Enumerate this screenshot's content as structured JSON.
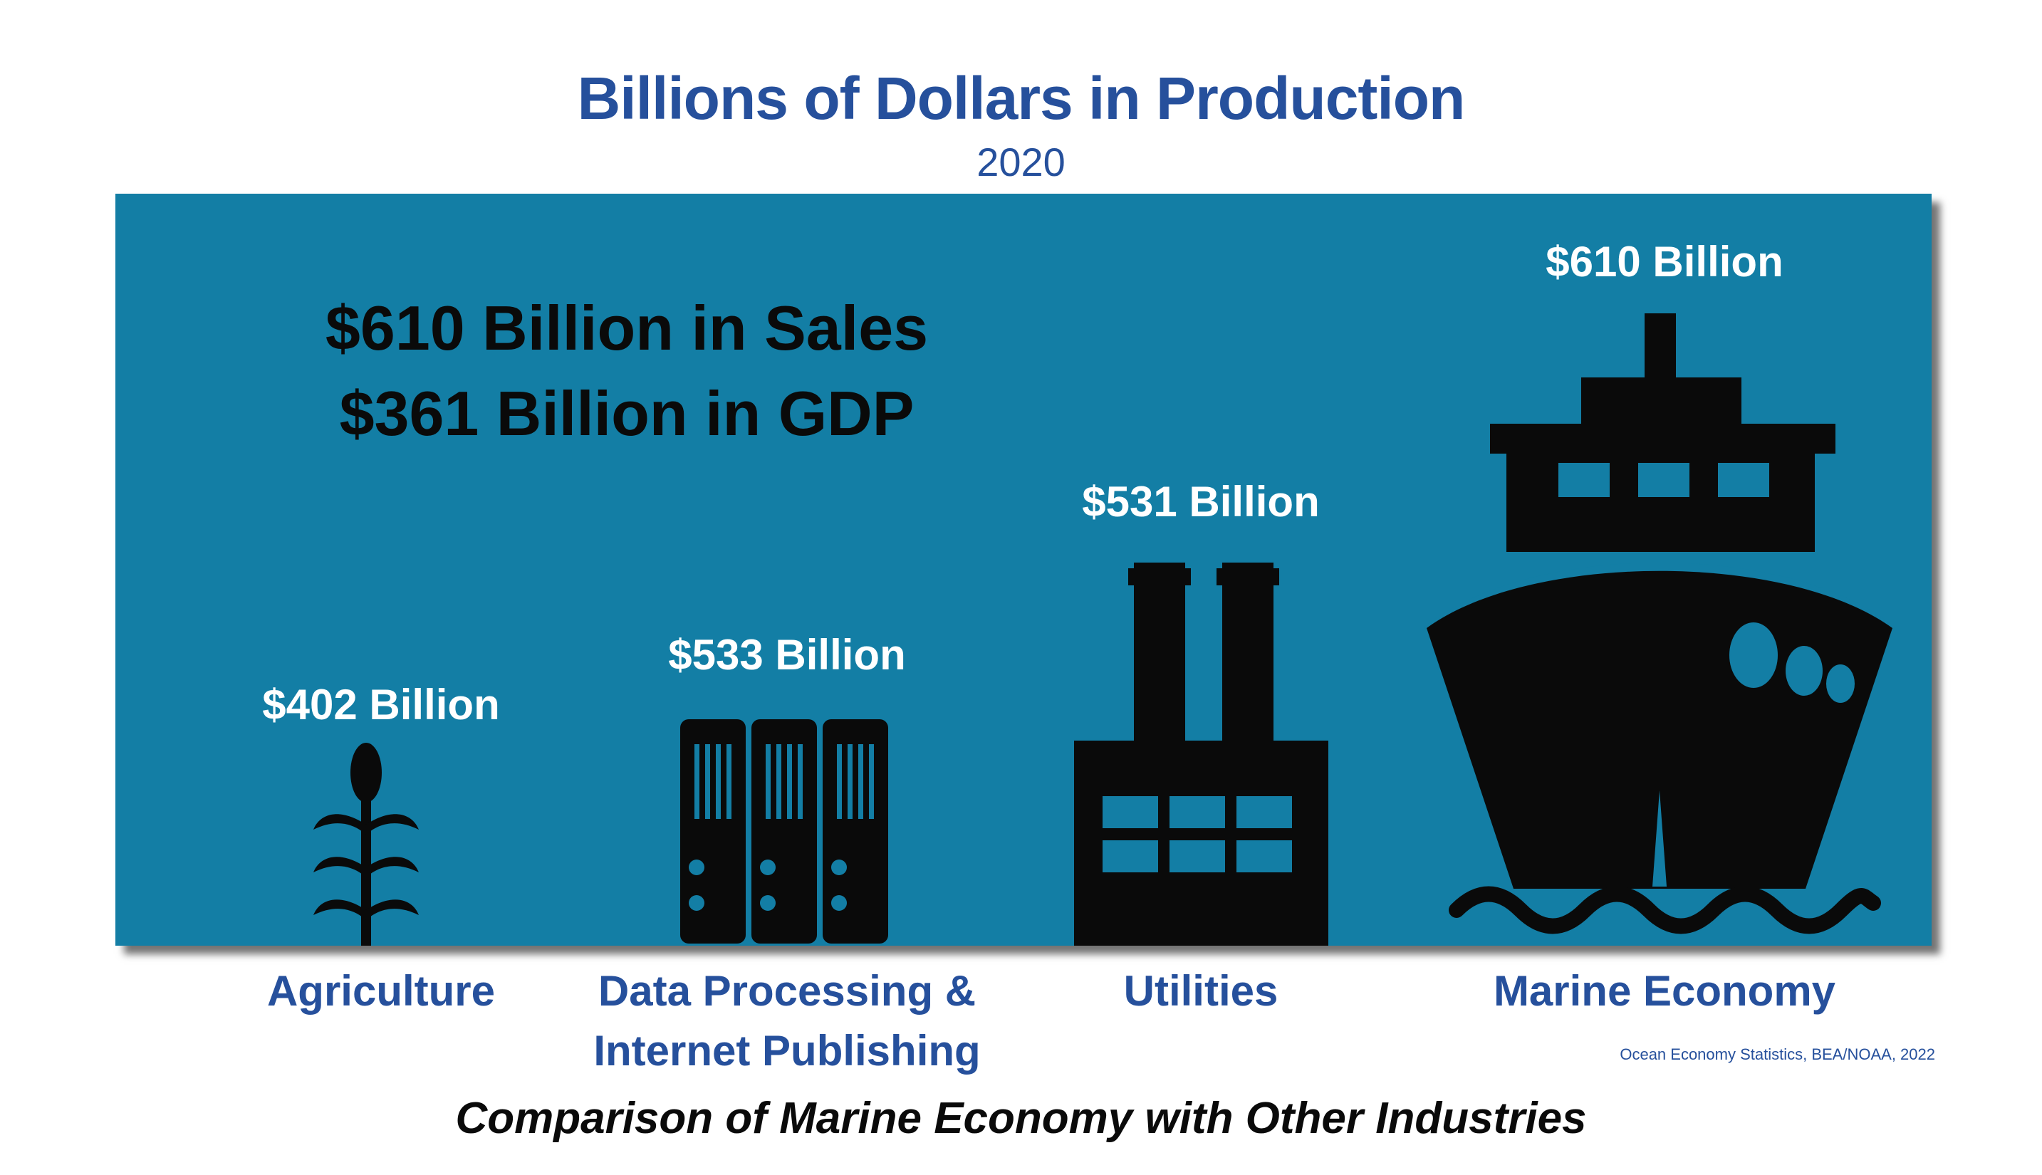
{
  "header": {
    "title": "Billions of Dollars in Production",
    "subtitle": "2020"
  },
  "summary": {
    "line1": "$610 Billion in Sales",
    "line2": "$361 Billion in GDP"
  },
  "chart_data": {
    "type": "bar",
    "title": "Billions of Dollars in Production",
    "subtitle": "2020",
    "unit": "Billion $",
    "categories": [
      "Agriculture",
      "Data Processing & Internet Publishing",
      "Utilities",
      "Marine Economy"
    ],
    "values": [
      402,
      533,
      531,
      610
    ],
    "value_labels": [
      "$402 Billion",
      "$533 Billion",
      "$531 Billion",
      "$610 Billion"
    ],
    "icons": [
      "corn-icon",
      "server-icon",
      "factory-icon",
      "ship-icon"
    ],
    "category_lines": [
      [
        "Agriculture"
      ],
      [
        "Data Processing &",
        "Internet Publishing"
      ],
      [
        "Utilities"
      ],
      [
        "Marine Economy"
      ]
    ]
  },
  "footer": {
    "source": "Ocean Economy Statistics, BEA/NOAA, 2022",
    "caption": "Comparison of Marine Economy with Other Industries"
  },
  "colors": {
    "title": "#26509c",
    "panel": "#137ea5",
    "icon": "#0a0a0a",
    "value_text": "#ffffff"
  }
}
